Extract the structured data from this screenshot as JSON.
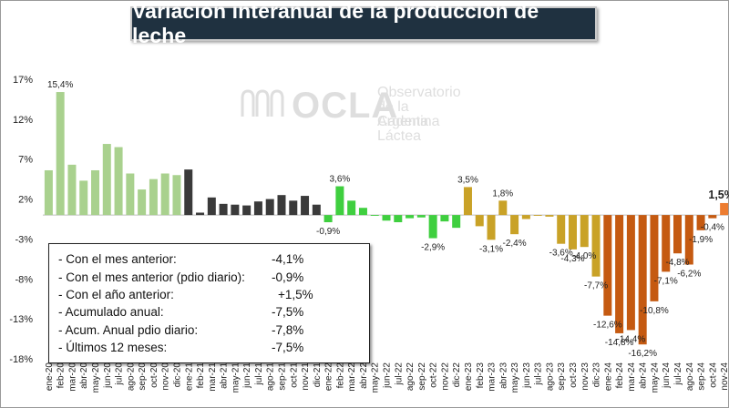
{
  "title": "Variación interanual de la producción de leche",
  "watermark": {
    "logo": "OCLA",
    "lines": [
      "Observatorio",
      "de la Cadena Láctea",
      "Argentina"
    ]
  },
  "stats": [
    {
      "label": "- Con el mes anterior:",
      "value": "-4,1%"
    },
    {
      "label": "- Con el mes anterior (pdio diario):",
      "value": "-0,9%"
    },
    {
      "label": "- Con el año anterior:",
      "value": "+1,5%"
    },
    {
      "label": "- Acumulado anual:",
      "value": "-7,5%"
    },
    {
      "label": "- Acum. Anual pdio diario:",
      "value": "-7,8%"
    },
    {
      "label": "- Últimos 12 meses:",
      "value": "-7,5%"
    }
  ],
  "chart_data": {
    "type": "bar",
    "title": "Variación interanual de la producción de leche",
    "ylim": [
      -18,
      17
    ],
    "y_ticks": [
      "17%",
      "12%",
      "7%",
      "2%",
      "-3%",
      "-8%",
      "-13%",
      "-18%"
    ],
    "y_tick_values": [
      17,
      12,
      7,
      2,
      -3,
      -8,
      -13,
      -18
    ],
    "categories": [
      "ene-20",
      "feb-20",
      "mar-20",
      "abr-20",
      "may-20",
      "jun-20",
      "jul-20",
      "ago-20",
      "sep-20",
      "oct-20",
      "nov-20",
      "dic-20",
      "ene-21",
      "feb-21",
      "mar-21",
      "abr-21",
      "may-21",
      "jun-21",
      "jul-21",
      "ago-21",
      "sep-21",
      "oct-21",
      "nov-21",
      "dic-21",
      "ene-22",
      "feb-22",
      "mar-22",
      "abr-22",
      "may-22",
      "jun-22",
      "jul-22",
      "ago-22",
      "sep-22",
      "oct-22",
      "nov-22",
      "dic-22",
      "ene-23",
      "feb-23",
      "mar-23",
      "abr-23",
      "may-23",
      "jun-23",
      "jul-23",
      "ago-23",
      "sep-23",
      "oct-23",
      "nov-23",
      "dic-23",
      "ene-24",
      "feb-24",
      "mar-24",
      "abr-24",
      "may-24",
      "jun-24",
      "jul-24",
      "ago-24",
      "sep-24",
      "oct-24",
      "nov-24"
    ],
    "values": [
      5.6,
      15.4,
      6.3,
      4.3,
      5.6,
      8.9,
      8.5,
      5.2,
      3.2,
      4.5,
      5.2,
      5.0,
      5.7,
      0.3,
      2.2,
      1.4,
      1.3,
      1.2,
      1.7,
      2.0,
      2.5,
      1.8,
      2.4,
      1.3,
      -0.9,
      3.6,
      1.8,
      0.9,
      -0.1,
      -0.7,
      -0.9,
      -0.4,
      -0.3,
      -2.9,
      -0.8,
      -1.6,
      3.5,
      -1.4,
      -3.1,
      1.8,
      -2.4,
      -0.5,
      -0.1,
      -0.2,
      -3.6,
      -4.3,
      -4.0,
      -7.7,
      -12.6,
      -14.8,
      -14.4,
      -16.2,
      -10.8,
      -7.1,
      -4.8,
      -6.2,
      -1.9,
      -0.4,
      1.5
    ],
    "labels": [
      {
        "index": 1,
        "text": "15,4%"
      },
      {
        "index": 24,
        "text": "-0,9%"
      },
      {
        "index": 25,
        "text": "3,6%"
      },
      {
        "index": 33,
        "text": "-2,9%"
      },
      {
        "index": 36,
        "text": "3,5%"
      },
      {
        "index": 38,
        "text": "-3,1%"
      },
      {
        "index": 39,
        "text": "1,8%"
      },
      {
        "index": 40,
        "text": "-2,4%"
      },
      {
        "index": 44,
        "text": "-3,6%"
      },
      {
        "index": 45,
        "text": "-4,3%"
      },
      {
        "index": 46,
        "text": "-4,0%"
      },
      {
        "index": 47,
        "text": "-7,7%"
      },
      {
        "index": 48,
        "text": "-12,6%"
      },
      {
        "index": 49,
        "text": "-14,8%"
      },
      {
        "index": 50,
        "text": "-14,4%"
      },
      {
        "index": 51,
        "text": "-16,2%"
      },
      {
        "index": 52,
        "text": "-10,8%"
      },
      {
        "index": 53,
        "text": "-7,1%"
      },
      {
        "index": 54,
        "text": "-4,8%"
      },
      {
        "index": 55,
        "text": "-6,2%"
      },
      {
        "index": 56,
        "text": "-1,9%"
      },
      {
        "index": 57,
        "text": "-0,4%"
      },
      {
        "index": 58,
        "text": "1,5%",
        "emphasis": true
      }
    ],
    "colors": {
      "2020": "#a9d18e",
      "2021": "#3a3a3a",
      "2022": "#3fcf3f",
      "2023": "#c9a227",
      "2024": "#c55a11",
      "last": "#ed7d31"
    }
  }
}
